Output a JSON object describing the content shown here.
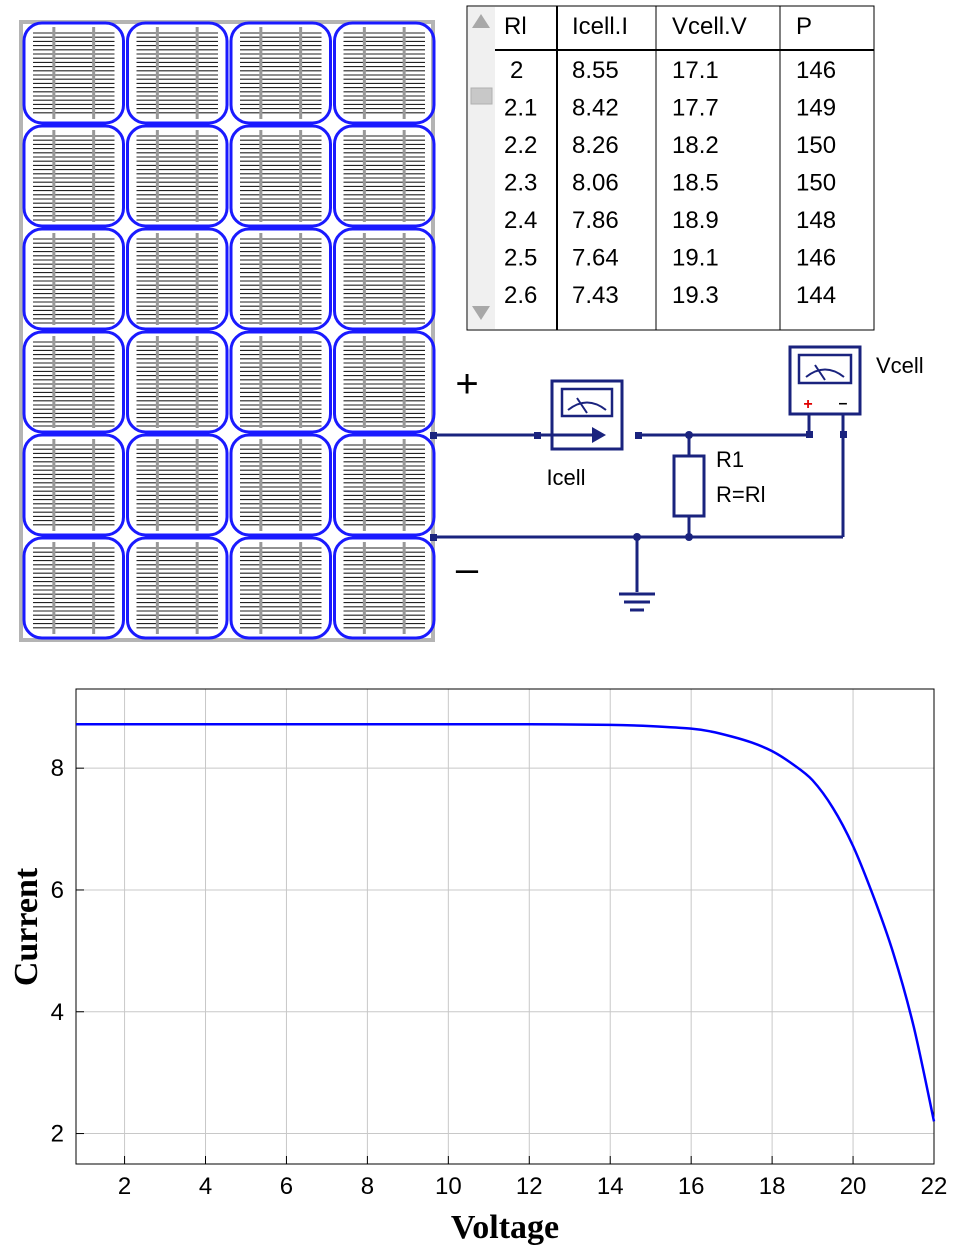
{
  "panel": {
    "rows": 6,
    "cols": 4,
    "plus_label": "+",
    "minus_label": "–"
  },
  "table": {
    "headers": [
      "Rl",
      "Icell.I",
      "Vcell.V",
      "P"
    ],
    "rows": [
      [
        "2",
        "8.55",
        "17.1",
        "146"
      ],
      [
        "2.1",
        "8.42",
        "17.7",
        "149"
      ],
      [
        "2.2",
        "8.26",
        "18.2",
        "150"
      ],
      [
        "2.3",
        "8.06",
        "18.5",
        "150"
      ],
      [
        "2.4",
        "7.86",
        "18.9",
        "148"
      ],
      [
        "2.5",
        "7.64",
        "19.1",
        "146"
      ],
      [
        "2.6",
        "7.43",
        "19.3",
        "144"
      ]
    ]
  },
  "circuit": {
    "ammeter_label": "Icell",
    "voltmeter_label": "Vcell",
    "resistor_name": "R1",
    "resistor_value": "R=Rl",
    "voltmeter_plus": "+",
    "voltmeter_minus": "–"
  },
  "chart_data": {
    "type": "line",
    "title": "",
    "xlabel": "Voltage",
    "ylabel": "Current",
    "xlim": [
      0.8,
      22
    ],
    "ylim": [
      1.5,
      9.3
    ],
    "xticks": [
      2,
      4,
      6,
      8,
      10,
      12,
      14,
      16,
      18,
      20,
      22
    ],
    "yticks": [
      2,
      4,
      6,
      8
    ],
    "grid": true,
    "line_color": "#0000ff",
    "series": [
      {
        "x": [
          0.8,
          2,
          4,
          6,
          8,
          10,
          12,
          14,
          15,
          16,
          16.5,
          17,
          17.5,
          18,
          18.5,
          19,
          19.5,
          20,
          20.5,
          21,
          21.5,
          22
        ],
        "y": [
          8.72,
          8.72,
          8.72,
          8.72,
          8.72,
          8.72,
          8.72,
          8.71,
          8.69,
          8.65,
          8.6,
          8.52,
          8.42,
          8.28,
          8.07,
          7.8,
          7.35,
          6.72,
          5.9,
          4.95,
          3.75,
          2.2
        ]
      }
    ]
  }
}
